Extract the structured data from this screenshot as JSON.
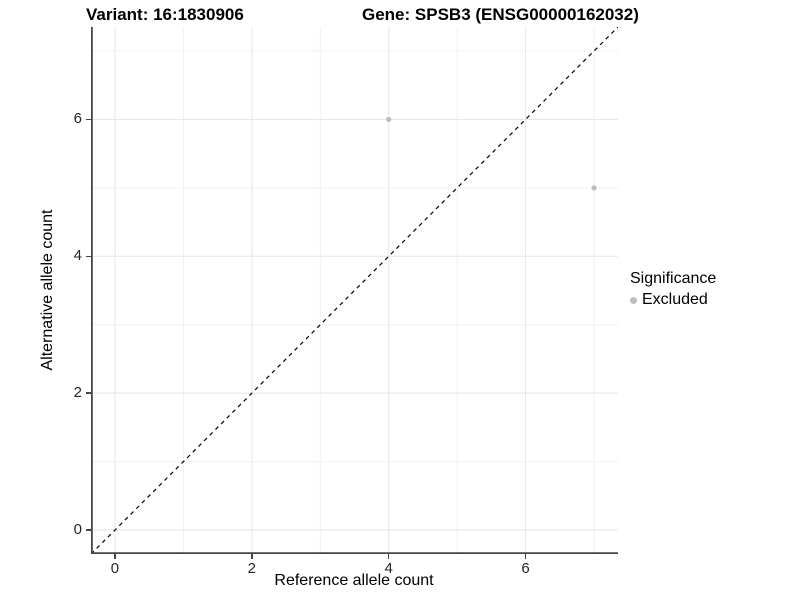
{
  "title": {
    "variant": "Variant: 16:1830906",
    "gene": "Gene: SPSB3 (ENSG00000162032)"
  },
  "chart_data": {
    "type": "scatter",
    "title": "Variant: 16:1830906    Gene: SPSB3 (ENSG00000162032)",
    "xlabel": "Reference allele count",
    "ylabel": "Alternative allele count",
    "xlim": [
      -0.35,
      7.35
    ],
    "ylim": [
      -0.35,
      7.35
    ],
    "x_major_ticks": [
      0,
      2,
      4,
      6
    ],
    "y_major_ticks": [
      0,
      2,
      4,
      6
    ],
    "x_minor_ticks": [
      1,
      3,
      5,
      7
    ],
    "y_minor_ticks": [
      1,
      3,
      5,
      7
    ],
    "grid": true,
    "grid_major_color": "#e5e5e5",
    "grid_minor_color": "#f0f0f0",
    "axis_line_color": "#464646",
    "series": [
      {
        "name": "Excluded",
        "color": "#bdbdbd",
        "marker": "circle",
        "points": [
          {
            "x": 4,
            "y": 6
          },
          {
            "x": 7,
            "y": 5
          }
        ]
      }
    ],
    "reference_line": {
      "type": "identity",
      "style": "dashed",
      "color": "#000000",
      "from": [
        -0.35,
        -0.35
      ],
      "to": [
        7.35,
        7.35
      ]
    },
    "legend_position": "right"
  },
  "legend": {
    "title": "Significance",
    "items": [
      {
        "label": "Excluded",
        "color": "#bdbdbd",
        "marker": "circle"
      }
    ]
  }
}
